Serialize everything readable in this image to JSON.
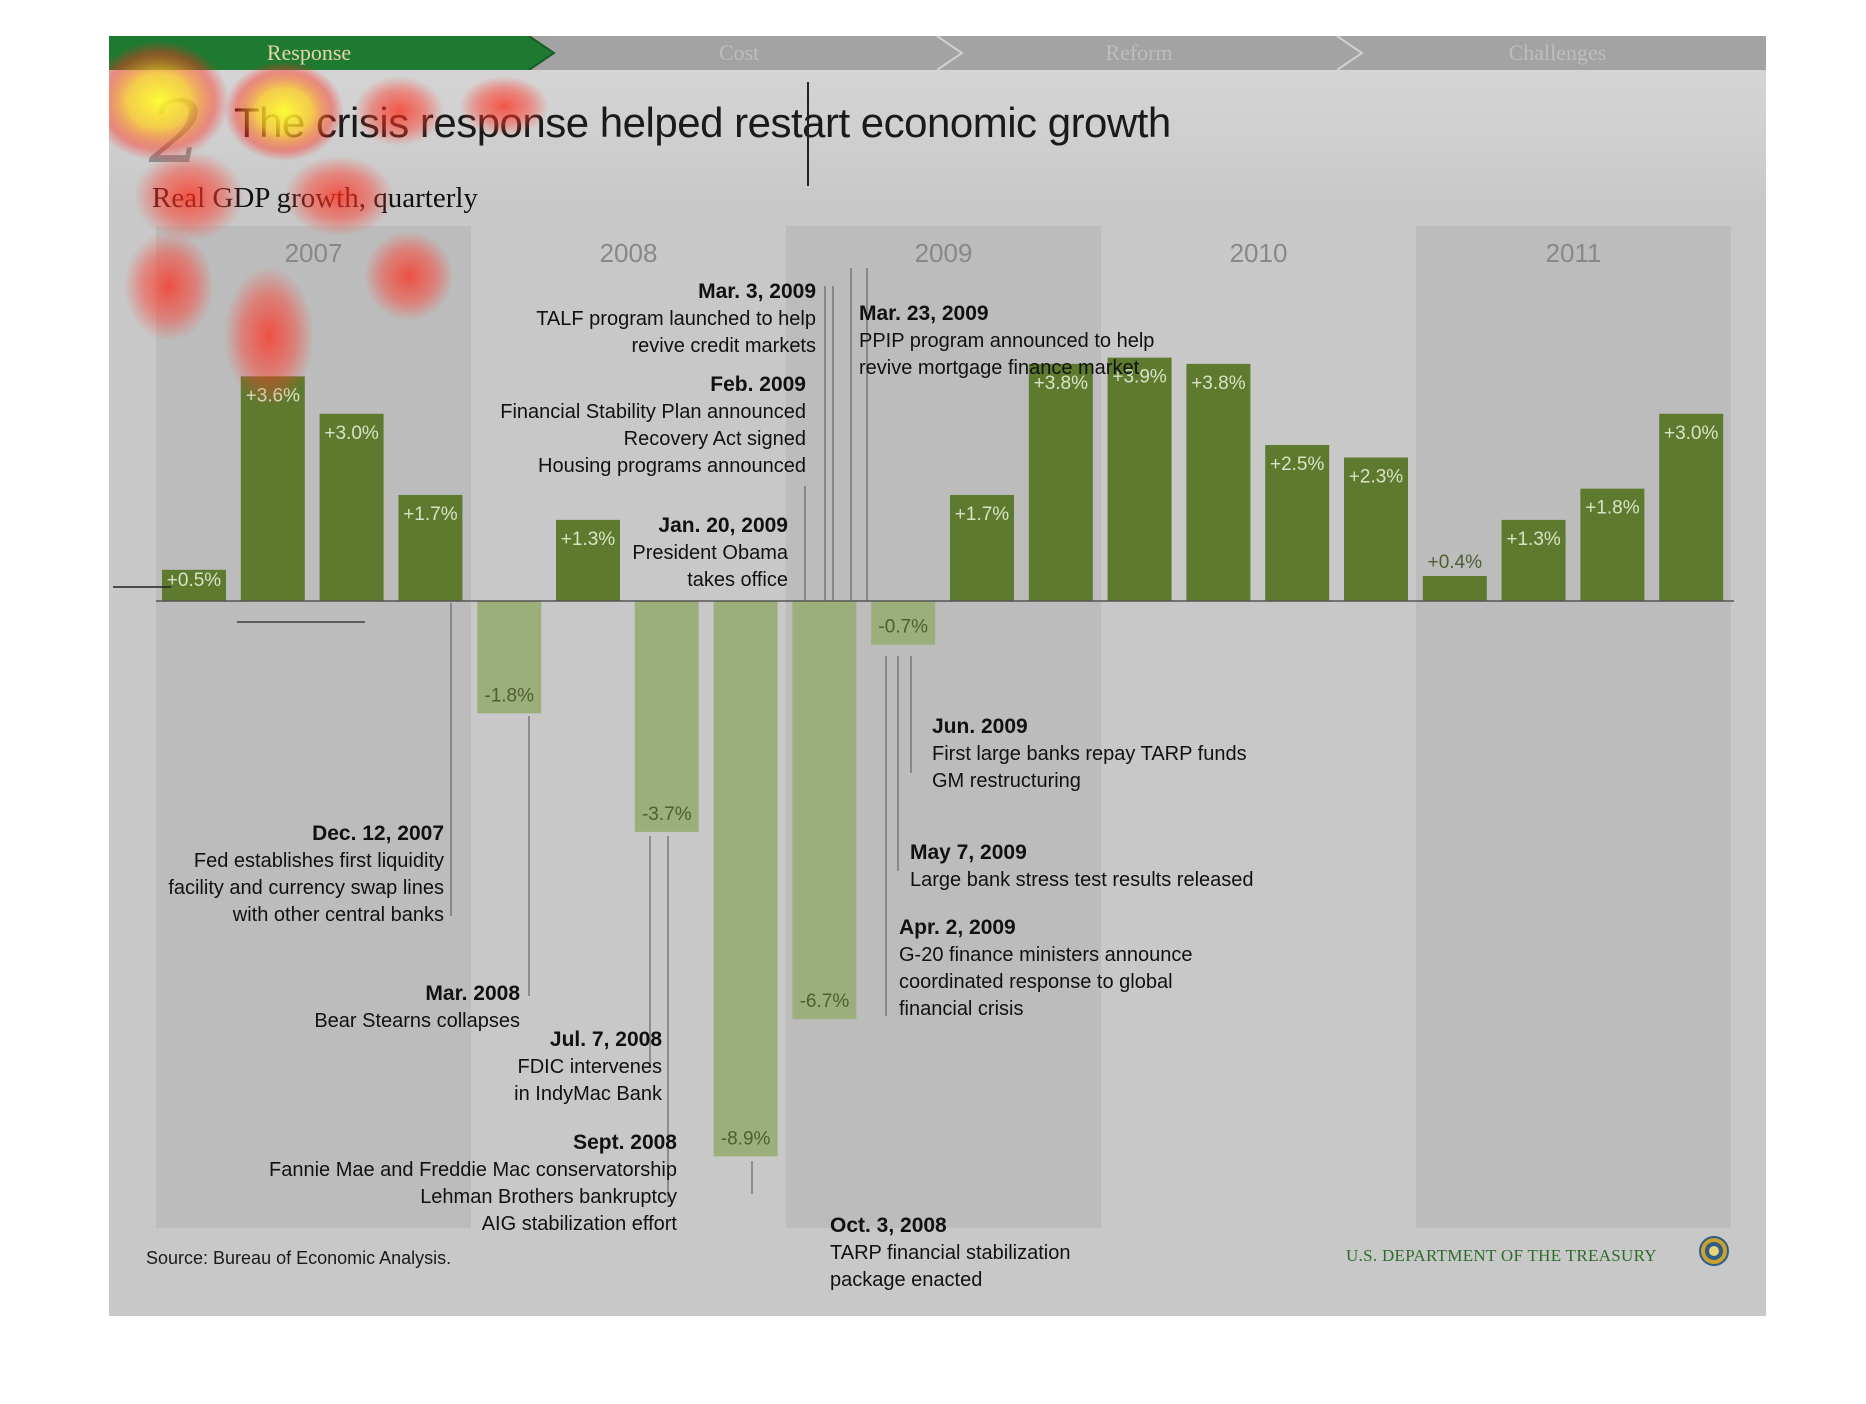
{
  "nav": {
    "tabs": [
      {
        "label": "Response",
        "active": true
      },
      {
        "label": "Cost",
        "active": false
      },
      {
        "label": "Reform",
        "active": false
      },
      {
        "label": "Challenges",
        "active": false
      }
    ],
    "active_color": "#1e7a30",
    "inactive_color": "#a3a3a3"
  },
  "header": {
    "slide_number": "2",
    "title": "The crisis response helped restart economic growth"
  },
  "chart_data": {
    "type": "bar",
    "subtitle": "Real GDP growth, quarterly",
    "years": [
      "2007",
      "2008",
      "2009",
      "2010",
      "2011"
    ],
    "categories": [
      "2007 Q1",
      "2007 Q2",
      "2007 Q3",
      "2007 Q4",
      "2008 Q1",
      "2008 Q2",
      "2008 Q3",
      "2008 Q4",
      "2009 Q1",
      "2009 Q2",
      "2009 Q3",
      "2009 Q4",
      "2010 Q1",
      "2010 Q2",
      "2010 Q3",
      "2010 Q4",
      "2011 Q1",
      "2011 Q2",
      "2011 Q3",
      "2011 Q4"
    ],
    "values": [
      0.5,
      3.6,
      3.0,
      1.7,
      -1.8,
      1.3,
      -3.7,
      -8.9,
      -6.7,
      -0.7,
      1.7,
      3.8,
      3.9,
      3.8,
      2.5,
      2.3,
      0.4,
      1.3,
      1.8,
      3.0
    ],
    "labels": [
      "+0.5%",
      "+3.6%",
      "+3.0%",
      "+1.7%",
      "-1.8%",
      "+1.3%",
      "-3.7%",
      "-8.9%",
      "-6.7%",
      "-0.7%",
      "+1.7%",
      "+3.8%",
      "+3.9%",
      "+3.8%",
      "+2.5%",
      "+2.3%",
      "+0.4%",
      "+1.3%",
      "+1.8%",
      "+3.0%"
    ],
    "unit": "%",
    "colors": {
      "positive": "#5e7a2e",
      "negative": "#9cae79",
      "positive_label": "#d9e2c6",
      "negative_label": "#4e5e33"
    },
    "annotations": [
      {
        "date": "Dec. 12, 2007",
        "lines": [
          "Fed establishes first liquidity",
          "facility and currency swap lines",
          "with other central banks"
        ]
      },
      {
        "date": "Mar. 2008",
        "lines": [
          "Bear Stearns collapses"
        ]
      },
      {
        "date": "Jul. 7, 2008",
        "lines": [
          "FDIC intervenes",
          "in IndyMac Bank"
        ]
      },
      {
        "date": "Sept. 2008",
        "lines": [
          "Fannie Mae and Freddie Mac conservatorship",
          "Lehman Brothers bankruptcy",
          "AIG stabilization effort"
        ]
      },
      {
        "date": "Oct. 3, 2008",
        "lines": [
          "TARP financial stabilization",
          "package enacted"
        ]
      },
      {
        "date": "Jan. 20, 2009",
        "lines": [
          "President Obama",
          "takes office"
        ]
      },
      {
        "date": "Feb. 2009",
        "lines": [
          "Financial Stability Plan announced",
          "Recovery Act signed",
          "Housing programs announced"
        ]
      },
      {
        "date": "Mar. 3, 2009",
        "lines": [
          "TALF program launched to help",
          "revive credit markets"
        ]
      },
      {
        "date": "Mar. 23, 2009",
        "lines": [
          "PPIP program announced to help",
          "revive mortgage finance market"
        ]
      },
      {
        "date": "Apr. 2, 2009",
        "lines": [
          "G-20 finance ministers announce",
          "coordinated response to global",
          "financial crisis"
        ]
      },
      {
        "date": "May 7, 2009",
        "lines": [
          "Large bank stress test results released"
        ]
      },
      {
        "date": "Jun. 2009",
        "lines": [
          "First large banks repay TARP funds",
          "GM restructuring"
        ]
      }
    ]
  },
  "footer": {
    "source": "Source: Bureau of Economic Analysis.",
    "agency": "U.S. DEPARTMENT OF THE TREASURY"
  }
}
